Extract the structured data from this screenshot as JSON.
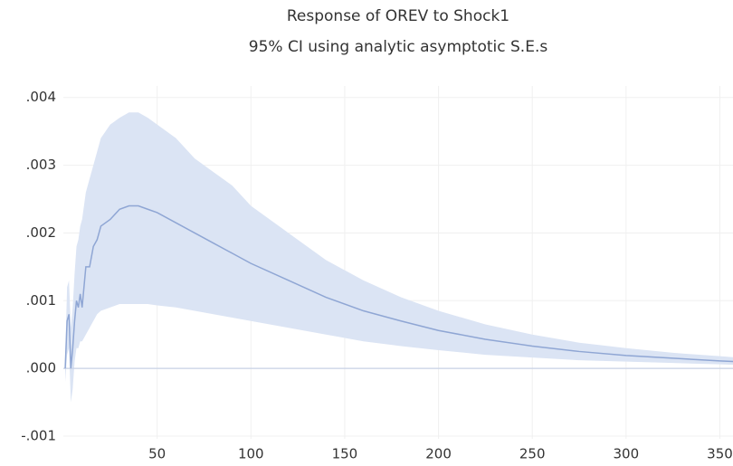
{
  "chart_data": {
    "type": "line",
    "title": "Response of OREV to Shock1",
    "subtitle": "95% CI using analytic asymptotic S.E.s",
    "x": [
      1,
      2,
      3,
      4,
      5,
      6,
      7,
      8,
      9,
      10,
      12,
      14,
      16,
      18,
      20,
      25,
      30,
      35,
      40,
      45,
      50,
      60,
      70,
      80,
      90,
      100,
      120,
      140,
      160,
      180,
      200,
      225,
      250,
      275,
      300,
      325,
      350,
      360
    ],
    "values": [
      0.0,
      0.0007,
      0.0008,
      0.0,
      0.0003,
      0.0007,
      0.001,
      0.0009,
      0.0011,
      0.0009,
      0.0015,
      0.0015,
      0.0018,
      0.0019,
      0.0021,
      0.0022,
      0.00235,
      0.0024,
      0.0024,
      0.00235,
      0.0023,
      0.00215,
      0.002,
      0.00185,
      0.0017,
      0.00155,
      0.0013,
      0.00105,
      0.00085,
      0.0007,
      0.00056,
      0.00043,
      0.00033,
      0.00025,
      0.00019,
      0.00015,
      0.00011,
      0.0001
    ],
    "band": {
      "upper": [
        0.0002,
        0.0012,
        0.0013,
        0.0006,
        0.0009,
        0.0014,
        0.0018,
        0.0019,
        0.0021,
        0.0022,
        0.0026,
        0.0028,
        0.003,
        0.0032,
        0.0034,
        0.0036,
        0.0037,
        0.00378,
        0.00378,
        0.0037,
        0.0036,
        0.0034,
        0.0031,
        0.0029,
        0.0027,
        0.0024,
        0.002,
        0.0016,
        0.0013,
        0.00105,
        0.00085,
        0.00065,
        0.0005,
        0.00038,
        0.0003,
        0.00023,
        0.00018,
        0.00016
      ],
      "lower": [
        -0.0002,
        0.0002,
        0.0003,
        -0.0005,
        -0.0003,
        0.0001,
        0.0003,
        0.0003,
        0.0004,
        0.0004,
        0.0005,
        0.0006,
        0.0007,
        0.0008,
        0.00085,
        0.0009,
        0.00095,
        0.00095,
        0.00095,
        0.00095,
        0.00093,
        0.0009,
        0.00085,
        0.0008,
        0.00075,
        0.0007,
        0.0006,
        0.0005,
        0.0004,
        0.00033,
        0.00027,
        0.0002,
        0.00016,
        0.00012,
        0.0001,
        8e-05,
        6e-05,
        5e-05
      ],
      "color": "#dbe4f4"
    },
    "color": "#8fa6d4",
    "xlim": [
      0,
      357
    ],
    "xticks": [
      50,
      100,
      150,
      200,
      250,
      300,
      350
    ],
    "ylim": [
      -0.00104,
      0.00417
    ],
    "yticks": [
      {
        "value": -0.001,
        "label": "-.001"
      },
      {
        "value": 0,
        "label": ".000"
      },
      {
        "value": 0.001,
        "label": ".001"
      },
      {
        "value": 0.002,
        "label": ".002"
      },
      {
        "value": 0.003,
        "label": ".003"
      },
      {
        "value": 0.004,
        "label": ".004"
      }
    ],
    "grid": true
  }
}
